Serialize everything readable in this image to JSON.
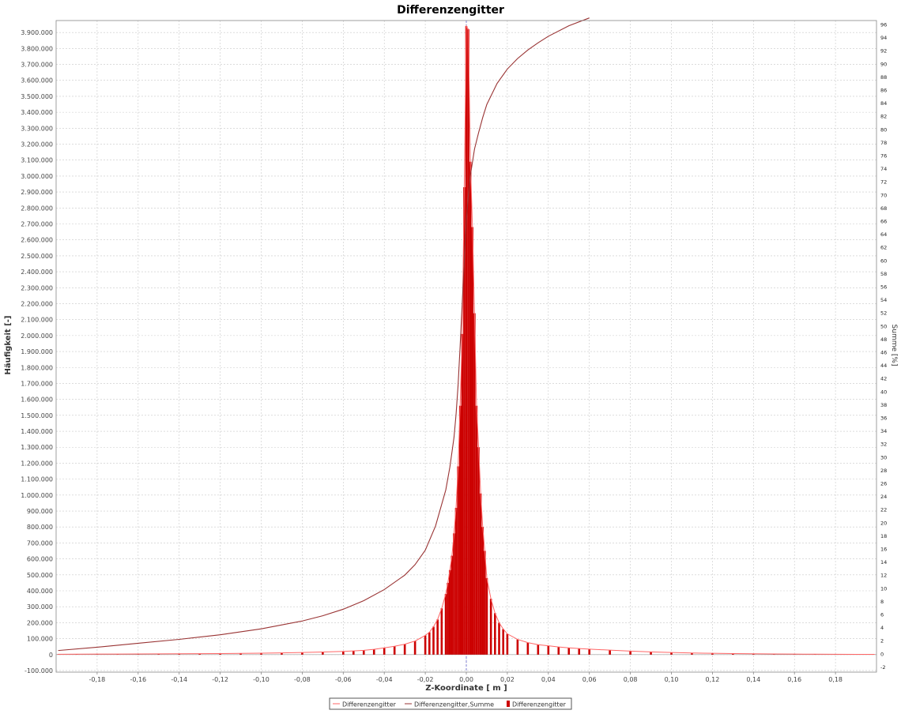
{
  "chart_data": {
    "type": "bar",
    "title": "Differenzengitter",
    "xlabel": "Z-Koordinate [ m ]",
    "ylabel": "Häufigkeit [-]",
    "y2label": "Summe [%]",
    "xlim": [
      -0.2,
      0.2
    ],
    "ylim": [
      -110000,
      3975000
    ],
    "y2lim": [
      -2.8,
      96.6
    ],
    "x_ticks": [
      "-0,18",
      "-0,16",
      "-0,14",
      "-0,12",
      "-0,10",
      "-0,08",
      "-0,06",
      "-0,04",
      "-0,02",
      "0,00",
      "0,02",
      "0,04",
      "0,06",
      "0,08",
      "0,10",
      "0,12",
      "0,14",
      "0,16",
      "0,18"
    ],
    "x_tick_values": [
      -0.18,
      -0.16,
      -0.14,
      -0.12,
      -0.1,
      -0.08,
      -0.06,
      -0.04,
      -0.02,
      0.0,
      0.02,
      0.04,
      0.06,
      0.08,
      0.1,
      0.12,
      0.14,
      0.16,
      0.18
    ],
    "y_ticks": [
      "-100.000",
      "0",
      "100.000",
      "200.000",
      "300.000",
      "400.000",
      "500.000",
      "600.000",
      "700.000",
      "800.000",
      "900.000",
      "1.000.000",
      "1.100.000",
      "1.200.000",
      "1.300.000",
      "1.400.000",
      "1.500.000",
      "1.600.000",
      "1.700.000",
      "1.800.000",
      "1.900.000",
      "2.000.000",
      "2.100.000",
      "2.200.000",
      "2.300.000",
      "2.400.000",
      "2.500.000",
      "2.600.000",
      "2.700.000",
      "2.800.000",
      "2.900.000",
      "3.000.000",
      "3.100.000",
      "3.200.000",
      "3.300.000",
      "3.400.000",
      "3.500.000",
      "3.600.000",
      "3.700.000",
      "3.800.000",
      "3.900.000"
    ],
    "y_tick_values": [
      -100000,
      0,
      100000,
      200000,
      300000,
      400000,
      500000,
      600000,
      700000,
      800000,
      900000,
      1000000,
      1100000,
      1200000,
      1300000,
      1400000,
      1500000,
      1600000,
      1700000,
      1800000,
      1900000,
      2000000,
      2100000,
      2200000,
      2300000,
      2400000,
      2500000,
      2600000,
      2700000,
      2800000,
      2900000,
      3000000,
      3100000,
      3200000,
      3300000,
      3400000,
      3500000,
      3600000,
      3700000,
      3800000,
      3900000
    ],
    "y2_ticks": [
      "-2",
      "0",
      "2",
      "4",
      "6",
      "8",
      "10",
      "12",
      "14",
      "16",
      "18",
      "20",
      "22",
      "24",
      "26",
      "28",
      "30",
      "32",
      "34",
      "36",
      "38",
      "40",
      "42",
      "44",
      "46",
      "48",
      "50",
      "52",
      "54",
      "56",
      "58",
      "60",
      "62",
      "64",
      "66",
      "68",
      "70",
      "72",
      "74",
      "76",
      "78",
      "80",
      "82",
      "84",
      "86",
      "88",
      "90",
      "92",
      "94",
      "96"
    ],
    "y2_tick_values": [
      -2,
      0,
      2,
      4,
      6,
      8,
      10,
      12,
      14,
      16,
      18,
      20,
      22,
      24,
      26,
      28,
      30,
      32,
      34,
      36,
      38,
      40,
      42,
      44,
      46,
      48,
      50,
      52,
      54,
      56,
      58,
      60,
      62,
      64,
      66,
      68,
      70,
      72,
      74,
      76,
      78,
      80,
      82,
      84,
      86,
      88,
      90,
      92,
      94,
      96
    ],
    "histogram": {
      "name": "Differenzengitter",
      "color": "#cc0000",
      "bin_width": 0.001,
      "x": [
        -0.199,
        -0.19,
        -0.18,
        -0.17,
        -0.16,
        -0.15,
        -0.14,
        -0.13,
        -0.12,
        -0.11,
        -0.1,
        -0.09,
        -0.08,
        -0.07,
        -0.06,
        -0.055,
        -0.05,
        -0.045,
        -0.04,
        -0.035,
        -0.03,
        -0.025,
        -0.02,
        -0.018,
        -0.016,
        -0.014,
        -0.012,
        -0.01,
        -0.009,
        -0.008,
        -0.007,
        -0.006,
        -0.005,
        -0.004,
        -0.003,
        -0.002,
        -0.001,
        0.0,
        0.001,
        0.002,
        0.003,
        0.004,
        0.005,
        0.006,
        0.007,
        0.008,
        0.009,
        0.01,
        0.012,
        0.014,
        0.016,
        0.018,
        0.02,
        0.025,
        0.03,
        0.035,
        0.04,
        0.045,
        0.05,
        0.055,
        0.06,
        0.07,
        0.08,
        0.09,
        0.1,
        0.11,
        0.12,
        0.13,
        0.14,
        0.15,
        0.16,
        0.17,
        0.18,
        0.19,
        0.199
      ],
      "values": [
        2000,
        2500,
        3000,
        3500,
        4000,
        4500,
        5000,
        5500,
        6500,
        7500,
        9000,
        11000,
        13000,
        16000,
        20000,
        23000,
        27000,
        33000,
        42000,
        52000,
        65000,
        85000,
        120000,
        140000,
        175000,
        220000,
        290000,
        380000,
        450000,
        530000,
        620000,
        760000,
        920000,
        1180000,
        1560000,
        2010000,
        2930000,
        3940000,
        3920000,
        3090000,
        2680000,
        2140000,
        1560000,
        1300000,
        1010000,
        800000,
        650000,
        480000,
        350000,
        260000,
        200000,
        160000,
        130000,
        95000,
        75000,
        62000,
        55000,
        48000,
        42000,
        38000,
        34000,
        28000,
        22000,
        17000,
        13000,
        10000,
        8000,
        6500,
        5000,
        4000,
        3000,
        2500,
        2000,
        1600,
        1200
      ]
    },
    "series": [
      {
        "name": "Differenzengitter,Summe",
        "color": "#993333",
        "x": [
          -0.199,
          -0.18,
          -0.16,
          -0.14,
          -0.12,
          -0.1,
          -0.08,
          -0.07,
          -0.06,
          -0.05,
          -0.04,
          -0.03,
          -0.025,
          -0.02,
          -0.015,
          -0.01,
          -0.008,
          -0.006,
          -0.005,
          -0.004,
          -0.003,
          -0.002,
          -0.001,
          0.0,
          0.001,
          0.002,
          0.004,
          0.006,
          0.008,
          0.01,
          0.015,
          0.02,
          0.025,
          0.03,
          0.035,
          0.04,
          0.05,
          0.06
        ],
        "values": [
          0.5,
          1.0,
          1.6,
          2.2,
          2.9,
          3.8,
          5.0,
          5.8,
          6.8,
          8.1,
          9.8,
          12.0,
          13.6,
          15.8,
          19.5,
          25.0,
          28.5,
          33.0,
          36.5,
          41.0,
          47.0,
          53.5,
          60.0,
          66.0,
          70.0,
          73.0,
          77.0,
          79.5,
          81.8,
          83.8,
          87.0,
          89.2,
          90.8,
          92.1,
          93.2,
          94.2,
          95.8,
          97.0
        ]
      }
    ],
    "legend": {
      "position": "bottom",
      "entries": [
        {
          "label": "Differenzengitter",
          "type": "line",
          "color": "#ff6666"
        },
        {
          "label": "Differenzengitter,Summe",
          "type": "line",
          "color": "#993333"
        },
        {
          "label": "Differenzengitter",
          "type": "square",
          "color": "#cc0000"
        }
      ]
    },
    "grid": true
  }
}
